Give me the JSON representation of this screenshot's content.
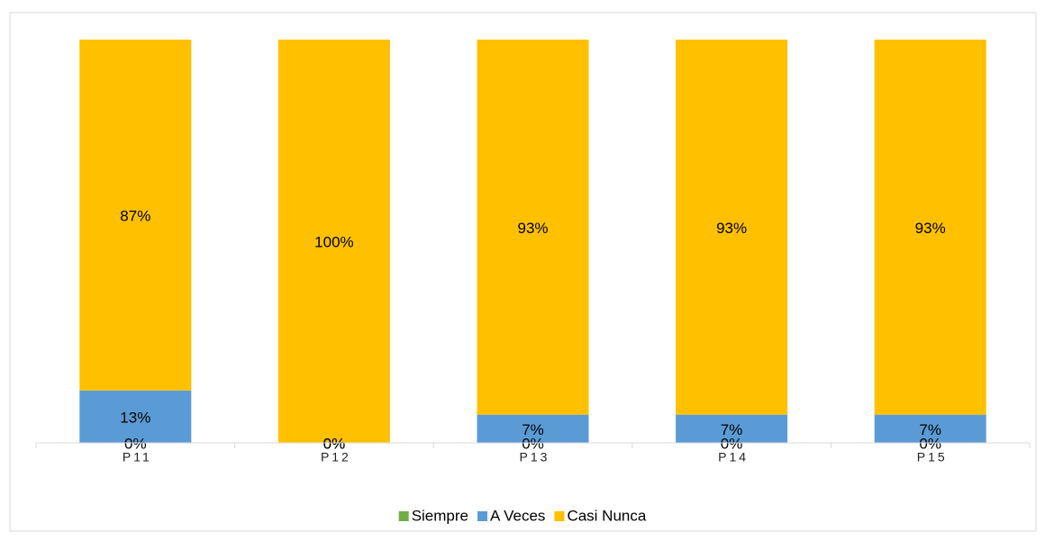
{
  "chart_data": {
    "type": "stacked_bar",
    "categories": [
      "P11",
      "P12",
      "P13",
      "P14",
      "P15"
    ],
    "series": [
      {
        "name": "Siempre",
        "color": "#70ad47",
        "values": [
          0,
          0,
          0,
          0,
          0
        ],
        "value_labels": [
          "0%",
          "0%",
          "0%",
          "0%",
          "0%"
        ]
      },
      {
        "name": "A Veces",
        "color": "#5b9bd5",
        "values": [
          13,
          0,
          7,
          7,
          7
        ],
        "value_labels": [
          "13%",
          "0%",
          "7%",
          "7%",
          "7%"
        ]
      },
      {
        "name": "Casi Nunca",
        "color": "#ffc000",
        "values": [
          87,
          100,
          93,
          93,
          93
        ],
        "value_labels": [
          "87%",
          "100%",
          "93%",
          "93%",
          "93%"
        ]
      }
    ],
    "ylim": [
      0,
      100
    ],
    "legend": "bottom"
  }
}
